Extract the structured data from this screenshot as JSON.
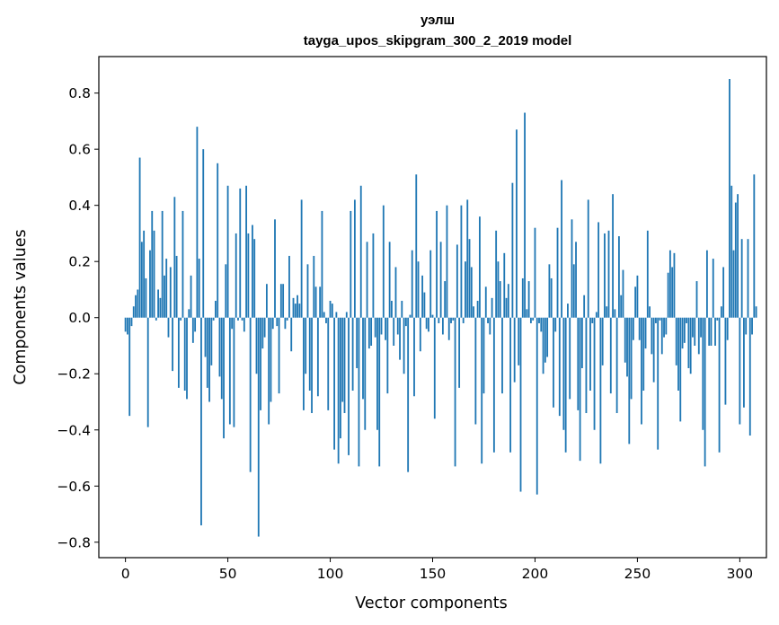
{
  "chart_data": {
    "type": "bar",
    "title": "уэлш",
    "subtitle": "tayga_upos_skipgram_300_2_2019 model",
    "xlabel": "Vector components",
    "ylabel": "Components values",
    "xlim": [
      -13,
      313
    ],
    "ylim": [
      -0.855,
      0.93
    ],
    "xticks": [
      0,
      50,
      100,
      150,
      200,
      250,
      300
    ],
    "yticks": [
      -0.8,
      -0.6,
      -0.4,
      -0.2,
      0.0,
      0.2,
      0.4,
      0.6,
      0.8
    ],
    "ytick_labels": [
      "−0.8",
      "−0.6",
      "−0.4",
      "−0.2",
      "0.0",
      "0.2",
      "0.4",
      "0.6",
      "0.8"
    ],
    "grid": false,
    "bar_color": "#1f77b4",
    "values": [
      -0.05,
      -0.06,
      -0.35,
      -0.03,
      0.04,
      0.08,
      0.1,
      0.57,
      0.27,
      0.31,
      0.14,
      -0.39,
      0.24,
      0.38,
      0.31,
      -0.01,
      0.1,
      0.07,
      0.38,
      0.15,
      0.21,
      -0.07,
      0.18,
      -0.19,
      0.43,
      0.22,
      -0.25,
      -0.01,
      0.38,
      -0.26,
      -0.29,
      0.03,
      0.15,
      -0.09,
      -0.05,
      0.68,
      0.21,
      -0.74,
      0.6,
      -0.14,
      -0.25,
      -0.3,
      -0.17,
      -0.01,
      0.06,
      0.55,
      -0.21,
      -0.29,
      -0.43,
      0.19,
      0.47,
      -0.38,
      -0.04,
      -0.39,
      0.3,
      -0.01,
      0.46,
      -0.01,
      -0.05,
      0.47,
      0.3,
      -0.55,
      0.33,
      0.28,
      -0.2,
      -0.78,
      -0.33,
      -0.11,
      -0.07,
      0.12,
      -0.38,
      -0.3,
      -0.04,
      0.35,
      -0.03,
      -0.27,
      0.12,
      0.12,
      -0.04,
      -0.01,
      0.22,
      -0.12,
      0.07,
      0.05,
      0.08,
      0.05,
      0.42,
      -0.33,
      -0.2,
      0.19,
      -0.26,
      -0.34,
      0.22,
      0.11,
      -0.28,
      0.11,
      0.38,
      0.02,
      -0.02,
      -0.33,
      0.06,
      0.05,
      -0.47,
      0.02,
      -0.52,
      -0.43,
      -0.3,
      -0.34,
      0.02,
      -0.49,
      0.38,
      -0.26,
      0.42,
      -0.18,
      -0.53,
      0.47,
      -0.29,
      -0.4,
      0.27,
      -0.11,
      -0.1,
      0.3,
      -0.07,
      -0.4,
      -0.53,
      -0.06,
      0.4,
      -0.08,
      -0.27,
      0.27,
      0.06,
      -0.1,
      0.18,
      -0.06,
      -0.15,
      0.06,
      -0.2,
      -0.03,
      -0.55,
      0.01,
      0.24,
      -0.28,
      0.51,
      0.2,
      -0.12,
      0.15,
      0.09,
      -0.04,
      -0.05,
      0.24,
      0.01,
      -0.36,
      0.38,
      -0.02,
      0.27,
      -0.06,
      0.13,
      0.4,
      -0.08,
      -0.02,
      -0.01,
      -0.53,
      0.26,
      -0.25,
      0.4,
      -0.02,
      0.2,
      0.42,
      0.28,
      0.18,
      0.04,
      -0.38,
      0.06,
      0.36,
      -0.52,
      -0.27,
      0.11,
      -0.02,
      -0.06,
      0.07,
      -0.48,
      0.31,
      0.2,
      0.13,
      -0.27,
      0.23,
      0.07,
      0.12,
      -0.48,
      0.48,
      -0.23,
      0.67,
      -0.17,
      -0.62,
      0.14,
      0.73,
      0.03,
      0.13,
      -0.02,
      -0.01,
      0.32,
      -0.63,
      -0.02,
      -0.05,
      -0.2,
      -0.16,
      -0.14,
      0.19,
      0.14,
      -0.32,
      -0.05,
      0.32,
      -0.35,
      0.49,
      -0.4,
      -0.48,
      0.05,
      -0.29,
      0.35,
      0.19,
      0.27,
      -0.33,
      -0.51,
      -0.18,
      0.08,
      -0.34,
      0.42,
      -0.26,
      -0.02,
      -0.4,
      0.02,
      0.34,
      -0.52,
      -0.17,
      0.3,
      0.04,
      0.31,
      -0.27,
      0.44,
      0.03,
      -0.34,
      0.29,
      0.08,
      0.17,
      -0.16,
      -0.21,
      -0.45,
      -0.29,
      -0.08,
      0.11,
      0.15,
      -0.08,
      -0.38,
      -0.26,
      -0.11,
      0.31,
      0.04,
      -0.13,
      -0.23,
      -0.02,
      -0.47,
      -0.01,
      -0.13,
      -0.07,
      -0.06,
      0.16,
      0.24,
      0.18,
      0.23,
      -0.17,
      -0.26,
      -0.37,
      -0.11,
      -0.09,
      -0.02,
      -0.18,
      -0.2,
      -0.07,
      -0.1,
      0.13,
      -0.13,
      -0.07,
      -0.4,
      -0.53,
      0.24,
      -0.1,
      -0.1,
      0.21,
      -0.1,
      -0.01,
      -0.48,
      0.04,
      0.18,
      -0.31,
      -0.08,
      0.85,
      0.47,
      0.24,
      0.41,
      0.44,
      -0.38,
      0.28,
      -0.32,
      -0.06,
      0.28,
      -0.42,
      -0.06,
      0.51,
      0.04
    ]
  }
}
